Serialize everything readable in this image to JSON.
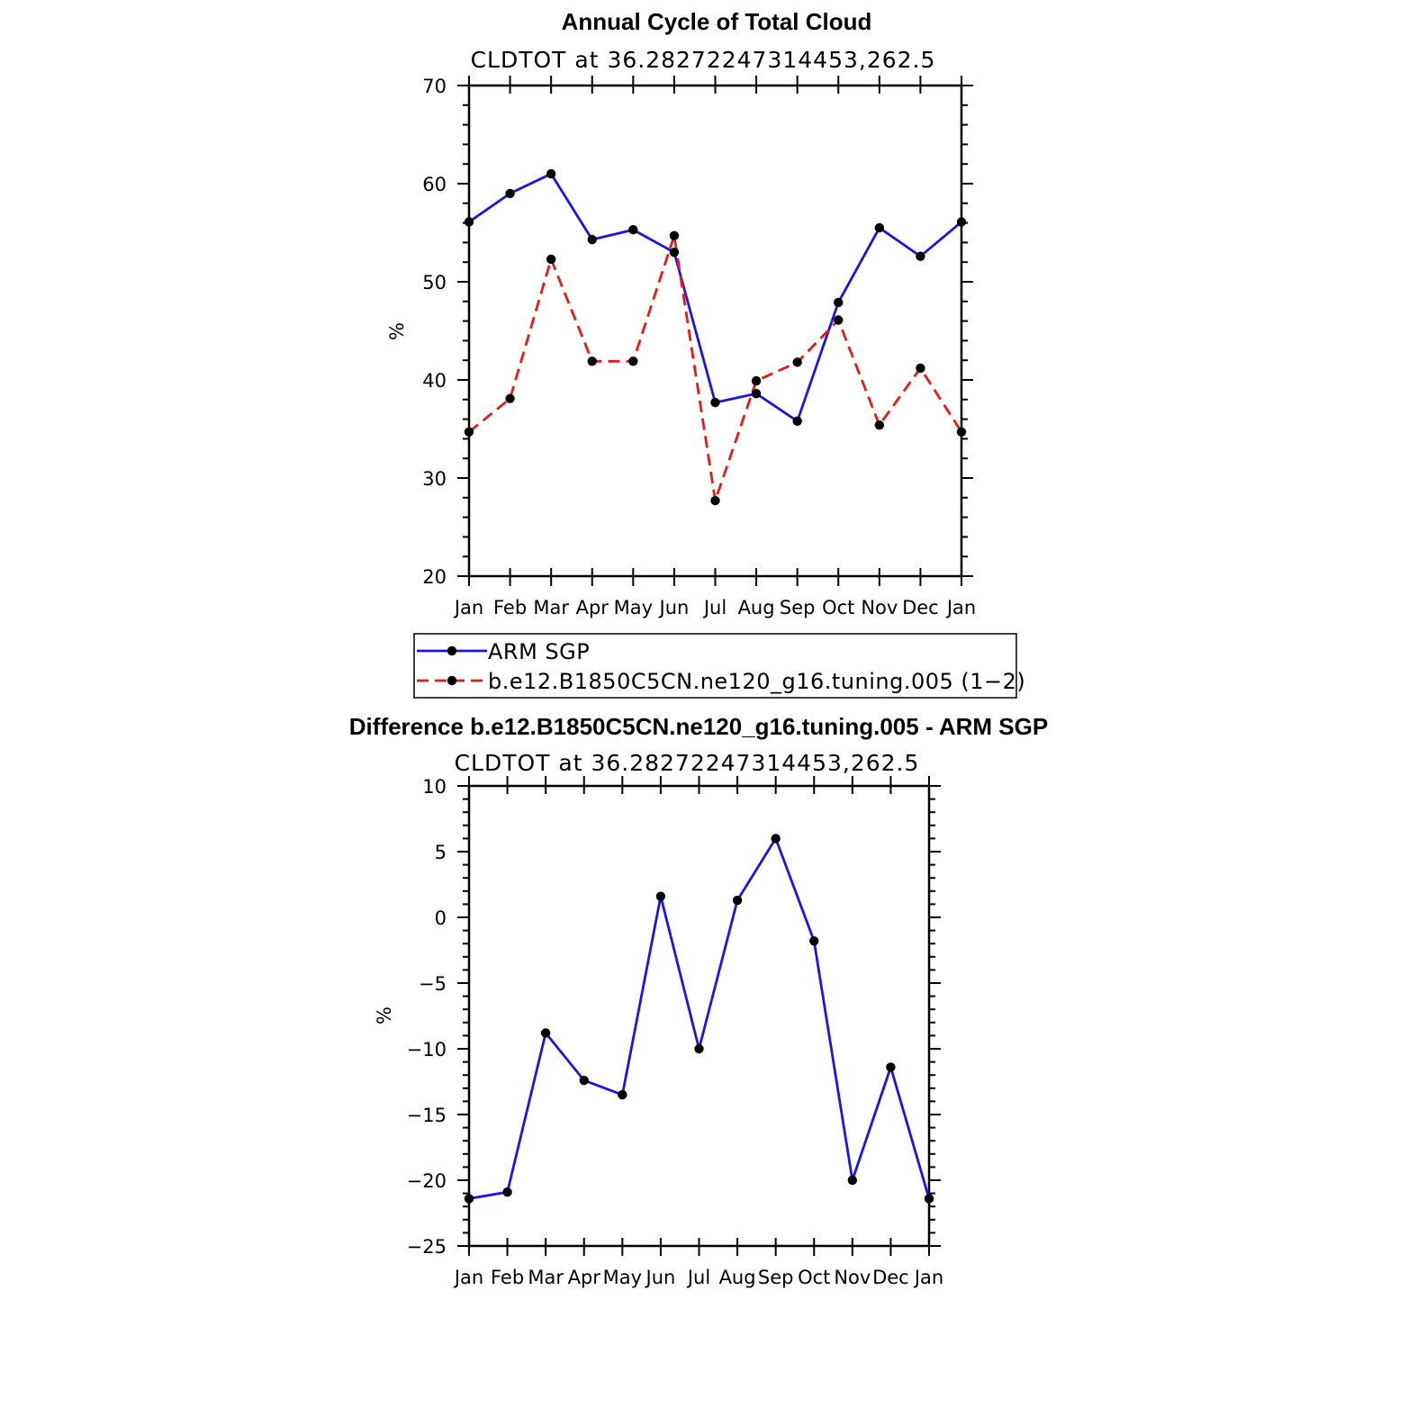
{
  "colors": {
    "arm": "#1a14e6",
    "model": "#e61a1a",
    "diff": "#1a14e6",
    "marker": "#000000"
  },
  "chart_data": [
    {
      "type": "line",
      "title": "Annual Cycle of Total Cloud",
      "subtitle": "CLDTOT at 36.28272247314453,262.5",
      "xlabel": "",
      "ylabel": "%",
      "categories": [
        "Jan",
        "Feb",
        "Mar",
        "Apr",
        "May",
        "Jun",
        "Jul",
        "Aug",
        "Sep",
        "Oct",
        "Nov",
        "Dec",
        "Jan"
      ],
      "ylim": [
        20,
        70
      ],
      "yticks": [
        20,
        30,
        40,
        50,
        60,
        70
      ],
      "grid": false,
      "legend": "bottom",
      "series": [
        {
          "name": "ARM SGP",
          "style": "solid",
          "color": "#1a14e6",
          "values": [
            56.1,
            59.0,
            61.0,
            54.3,
            55.3,
            53.0,
            37.7,
            38.6,
            35.8,
            47.9,
            55.5,
            52.6,
            56.1
          ]
        },
        {
          "name": "b.e12.B1850C5CN.ne120_g16.tuning.005 (1-2)",
          "style": "dashed",
          "color": "#e61a1a",
          "values": [
            34.7,
            38.1,
            52.3,
            41.9,
            41.9,
            54.7,
            27.7,
            39.9,
            41.8,
            46.1,
            35.4,
            41.2,
            34.7
          ]
        }
      ]
    },
    {
      "type": "line",
      "title": "Difference b.e12.B1850C5CN.ne120_g16.tuning.005 - ARM SGP",
      "subtitle": "CLDTOT at 36.28272247314453,262.5",
      "xlabel": "",
      "ylabel": "%",
      "categories": [
        "Jan",
        "Feb",
        "Mar",
        "Apr",
        "May",
        "Jun",
        "Jul",
        "Aug",
        "Sep",
        "Oct",
        "Nov",
        "Dec",
        "Jan"
      ],
      "ylim": [
        -25,
        10
      ],
      "yticks": [
        -25,
        -20,
        -15,
        -10,
        -5,
        0,
        5,
        10
      ],
      "grid": false,
      "series": [
        {
          "color": "#1a14e6",
          "values": [
            -21.4,
            -20.9,
            -8.8,
            -12.4,
            -13.5,
            1.6,
            -10.0,
            1.3,
            6.0,
            -1.8,
            -20.0,
            -11.4,
            -21.4
          ]
        }
      ]
    }
  ]
}
